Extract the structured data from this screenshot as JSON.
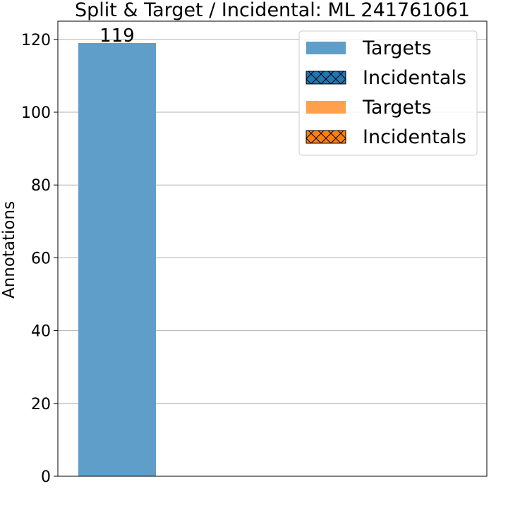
{
  "chart_data": {
    "type": "bar",
    "title": "Split & Target / Incidental: ML 241761061",
    "xlabel": "",
    "ylabel": "Annotations",
    "ylim": [
      0,
      125
    ],
    "yticks": [
      0,
      20,
      40,
      60,
      80,
      100,
      120
    ],
    "grid": "horizontal",
    "categories": [
      ""
    ],
    "series": [
      {
        "name": "Targets",
        "values": [
          119
        ],
        "color": "#5f9ec9",
        "hatch": "none"
      },
      {
        "name": "Incidentals",
        "values": [
          0
        ],
        "color": "#1f77b4",
        "hatch": "cross"
      },
      {
        "name": "Targets",
        "values": [
          0
        ],
        "color": "#ffa04d",
        "hatch": "none"
      },
      {
        "name": "Incidentals",
        "values": [
          0
        ],
        "color": "#ff7f0e",
        "hatch": "cross"
      }
    ],
    "data_labels": [
      "119"
    ],
    "legend": {
      "placement": "top-right"
    }
  }
}
